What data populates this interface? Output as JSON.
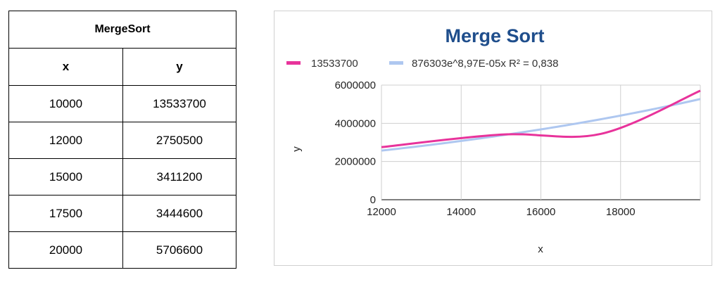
{
  "table": {
    "caption": "MergeSort",
    "headers": [
      "x",
      "y"
    ],
    "rows": [
      [
        "10000",
        "13533700"
      ],
      [
        "12000",
        "2750500"
      ],
      [
        "15000",
        "3411200"
      ],
      [
        "17500",
        "3444600"
      ],
      [
        "20000",
        "5706600"
      ]
    ]
  },
  "chart_data": {
    "type": "line",
    "title": "Merge Sort",
    "xlabel": "x",
    "ylabel": "y",
    "xlim": [
      12000,
      20000
    ],
    "ylim": [
      0,
      6000000
    ],
    "x_ticks": [
      "12000",
      "14000",
      "16000",
      "18000"
    ],
    "y_ticks": [
      "0",
      "2000000",
      "4000000",
      "6000000"
    ],
    "grid": true,
    "legend_position": "top",
    "series": [
      {
        "name": "13533700",
        "color": "#e8339b",
        "x": [
          12000,
          15000,
          17500,
          20000
        ],
        "values": [
          2750500,
          3411200,
          3444600,
          5706600
        ]
      },
      {
        "name": "876303e^8,97E-05x R² = 0,838",
        "color": "#aec7f0",
        "trend": "exponential",
        "coefficient": 876303,
        "exponent": 8.97e-05
      }
    ]
  }
}
